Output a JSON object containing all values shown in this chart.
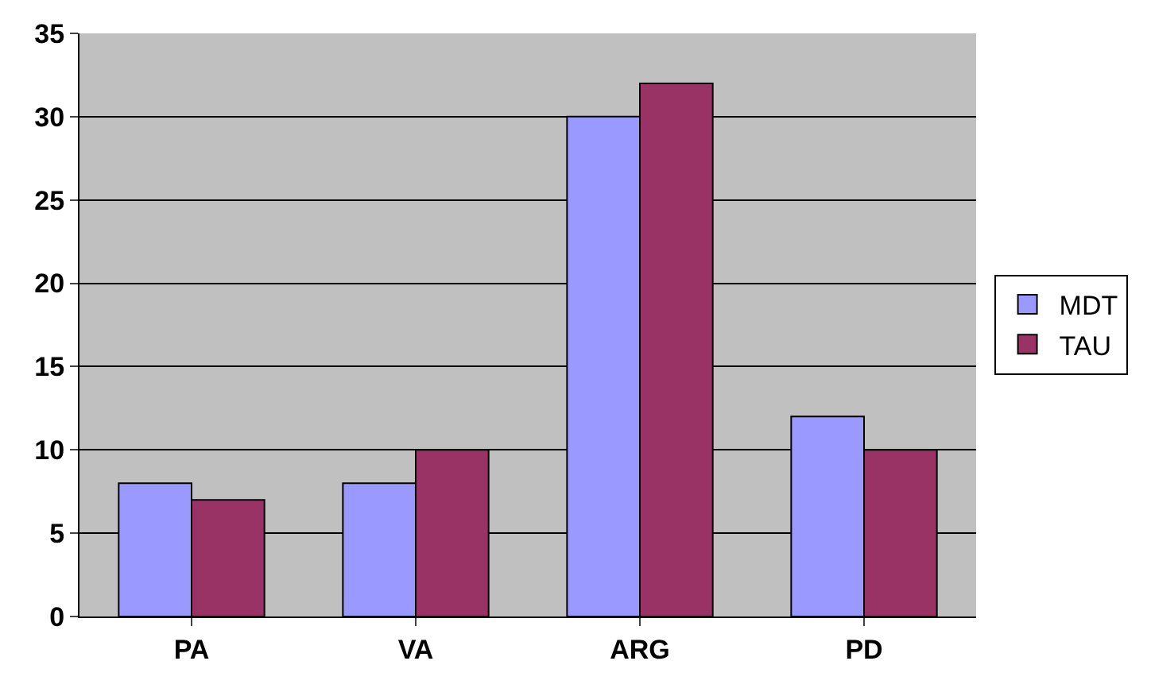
{
  "chart_data": {
    "type": "bar",
    "categories": [
      "PA",
      "VA",
      "ARG",
      "PD"
    ],
    "series": [
      {
        "name": "MDT",
        "color": "#9999ff",
        "values": [
          8,
          8,
          30,
          12
        ]
      },
      {
        "name": "TAU",
        "color": "#993366",
        "values": [
          7,
          10,
          32,
          10
        ]
      }
    ],
    "ylim": [
      0,
      35
    ],
    "yticks": [
      0,
      5,
      10,
      15,
      20,
      25,
      30,
      35
    ],
    "grid": "y",
    "legend": "right"
  }
}
